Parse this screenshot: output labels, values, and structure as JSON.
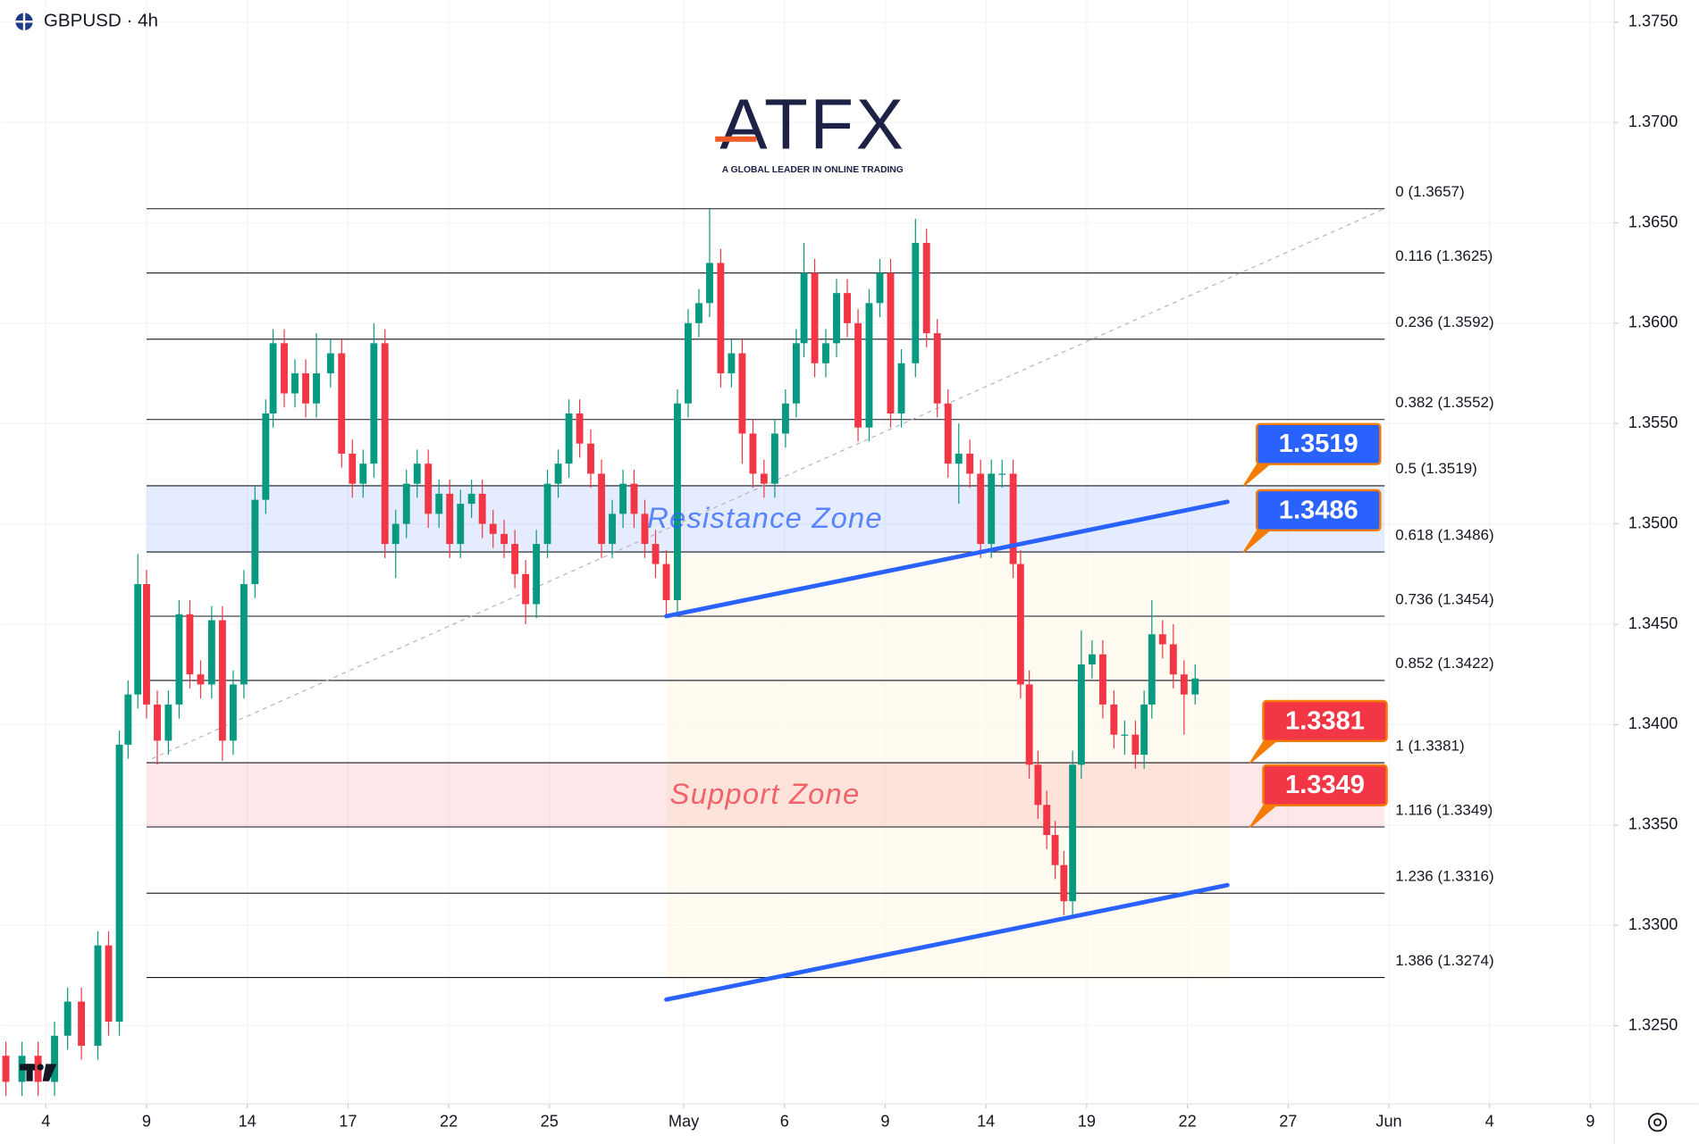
{
  "header": {
    "symbol_line": "GBPUSD · 4h"
  },
  "logo": {
    "name": "ATFX",
    "tagline": "A GLOBAL LEADER IN ONLINE TRADING"
  },
  "chart_data": {
    "type": "candlestick",
    "up_color": "#089981",
    "down_color": "#f23645",
    "grid": true,
    "xlim": [
      -1.355,
      46.71
    ],
    "xticks": [
      {
        "value": 0,
        "label": "4"
      },
      {
        "value": 3,
        "label": "9"
      },
      {
        "value": 6,
        "label": "14"
      },
      {
        "value": 9,
        "label": "17"
      },
      {
        "value": 12,
        "label": "22"
      },
      {
        "value": 15,
        "label": "25"
      },
      {
        "value": 19,
        "label": "May"
      },
      {
        "value": 22,
        "label": "6"
      },
      {
        "value": 25,
        "label": "9"
      },
      {
        "value": 28,
        "label": "14"
      },
      {
        "value": 31,
        "label": "19"
      },
      {
        "value": 34,
        "label": "22"
      },
      {
        "value": 37,
        "label": "27"
      },
      {
        "value": 40,
        "label": "Jun"
      },
      {
        "value": 43,
        "label": "4"
      },
      {
        "value": 46,
        "label": "9"
      }
    ],
    "ylim": [
      1.3211,
      1.3761
    ],
    "yticks": [
      {
        "value": 1.375,
        "label": "1.3750"
      },
      {
        "value": 1.37,
        "label": "1.3700"
      },
      {
        "value": 1.365,
        "label": "1.3650"
      },
      {
        "value": 1.36,
        "label": "1.3600"
      },
      {
        "value": 1.355,
        "label": "1.3550"
      },
      {
        "value": 1.35,
        "label": "1.3500"
      },
      {
        "value": 1.345,
        "label": "1.3450"
      },
      {
        "value": 1.34,
        "label": "1.3400"
      },
      {
        "value": 1.335,
        "label": "1.3350"
      },
      {
        "value": 1.33,
        "label": "1.3300"
      },
      {
        "value": 1.325,
        "label": "1.3250"
      }
    ],
    "x": [
      -1.19,
      -0.71,
      -0.23,
      0.26,
      0.65,
      1.06,
      1.55,
      1.87,
      2.19,
      2.45,
      2.74,
      3.0,
      3.32,
      3.65,
      3.97,
      4.29,
      4.61,
      4.94,
      5.26,
      5.58,
      5.9,
      6.23,
      6.55,
      6.77,
      7.1,
      7.42,
      7.74,
      8.06,
      8.48,
      8.81,
      9.13,
      9.45,
      9.77,
      10.1,
      10.42,
      10.74,
      11.06,
      11.39,
      11.71,
      12.03,
      12.35,
      12.68,
      13.0,
      13.32,
      13.65,
      13.97,
      14.29,
      14.61,
      14.94,
      15.26,
      15.58,
      15.9,
      16.23,
      16.55,
      16.87,
      17.19,
      17.52,
      17.84,
      18.16,
      18.48,
      18.81,
      19.13,
      19.45,
      19.77,
      20.1,
      20.42,
      20.74,
      21.06,
      21.39,
      21.71,
      22.03,
      22.35,
      22.58,
      22.9,
      23.23,
      23.55,
      23.87,
      24.19,
      24.52,
      24.84,
      25.16,
      25.48,
      25.9,
      26.23,
      26.55,
      26.87,
      27.19,
      27.52,
      27.84,
      28.16,
      28.48,
      28.81,
      29.03,
      29.29,
      29.55,
      29.81,
      30.06,
      30.32,
      30.58,
      30.84,
      31.16,
      31.48,
      31.81,
      32.13,
      32.45,
      32.71,
      32.94,
      33.26,
      33.58,
      33.9,
      34.23
    ],
    "open": [
      1.3235,
      1.3222,
      1.3235,
      1.3222,
      1.3245,
      1.3262,
      1.324,
      1.329,
      1.3252,
      1.339,
      1.3415,
      1.347,
      1.341,
      1.3392,
      1.341,
      1.3455,
      1.3425,
      1.342,
      1.3452,
      1.3392,
      1.342,
      1.347,
      1.3512,
      1.3555,
      1.359,
      1.3565,
      1.3575,
      1.356,
      1.3575,
      1.3585,
      1.3535,
      1.352,
      1.353,
      1.359,
      1.349,
      1.35,
      1.352,
      1.353,
      1.3505,
      1.3515,
      1.349,
      1.351,
      1.3515,
      1.35,
      1.3495,
      1.349,
      1.3475,
      1.346,
      1.349,
      1.352,
      1.353,
      1.3555,
      1.354,
      1.3525,
      1.349,
      1.3505,
      1.352,
      1.3505,
      1.349,
      1.348,
      1.3462,
      1.356,
      1.36,
      1.361,
      1.363,
      1.3575,
      1.3585,
      1.3545,
      1.3525,
      1.352,
      1.3545,
      1.356,
      1.359,
      1.3625,
      1.358,
      1.359,
      1.3615,
      1.36,
      1.3548,
      1.361,
      1.3625,
      1.3555,
      1.358,
      1.364,
      1.3595,
      1.356,
      1.353,
      1.3535,
      1.3525,
      1.349,
      1.3525,
      1.3525,
      1.348,
      1.342,
      1.338,
      1.336,
      1.3345,
      1.333,
      1.3312,
      1.338,
      1.343,
      1.3435,
      1.341,
      1.3395,
      1.3395,
      1.3385,
      1.341,
      1.3445,
      1.344,
      1.3425,
      1.3415
    ],
    "high": [
      1.3242,
      1.3242,
      1.3242,
      1.3252,
      1.3269,
      1.3269,
      1.3297,
      1.3297,
      1.3397,
      1.3422,
      1.3485,
      1.3477,
      1.3417,
      1.3417,
      1.3462,
      1.3462,
      1.3432,
      1.3459,
      1.3459,
      1.3427,
      1.3477,
      1.3519,
      1.3562,
      1.3597,
      1.3597,
      1.3582,
      1.3582,
      1.3595,
      1.3592,
      1.3592,
      1.3542,
      1.3537,
      1.36,
      1.3597,
      1.3507,
      1.3527,
      1.3537,
      1.3537,
      1.3522,
      1.3522,
      1.3517,
      1.3522,
      1.3522,
      1.3507,
      1.3502,
      1.3497,
      1.3482,
      1.3497,
      1.3527,
      1.3537,
      1.3562,
      1.3562,
      1.3547,
      1.3532,
      1.3512,
      1.3527,
      1.3527,
      1.3512,
      1.3497,
      1.3487,
      1.3567,
      1.3607,
      1.3617,
      1.3657,
      1.3637,
      1.3592,
      1.3592,
      1.3552,
      1.3532,
      1.3552,
      1.3567,
      1.3597,
      1.364,
      1.3632,
      1.3597,
      1.3622,
      1.3622,
      1.3607,
      1.3617,
      1.3632,
      1.3632,
      1.3587,
      1.3652,
      1.3647,
      1.3602,
      1.3567,
      1.355,
      1.3542,
      1.3532,
      1.3532,
      1.3532,
      1.3532,
      1.3487,
      1.3427,
      1.3387,
      1.3367,
      1.3352,
      1.3337,
      1.3387,
      1.3447,
      1.3442,
      1.3442,
      1.3417,
      1.3402,
      1.3402,
      1.3417,
      1.3462,
      1.3452,
      1.345,
      1.3432,
      1.343
    ],
    "low": [
      1.3215,
      1.3215,
      1.3215,
      1.3215,
      1.3238,
      1.3233,
      1.3233,
      1.3245,
      1.3245,
      1.3383,
      1.3408,
      1.3403,
      1.338,
      1.3385,
      1.3403,
      1.3418,
      1.3413,
      1.3413,
      1.3382,
      1.3385,
      1.3413,
      1.3463,
      1.3505,
      1.3548,
      1.3558,
      1.3558,
      1.3553,
      1.3553,
      1.3568,
      1.3528,
      1.3513,
      1.3513,
      1.3523,
      1.3483,
      1.3473,
      1.3493,
      1.3513,
      1.3498,
      1.3498,
      1.3483,
      1.3483,
      1.3503,
      1.3493,
      1.3488,
      1.3483,
      1.3468,
      1.345,
      1.3453,
      1.3483,
      1.3513,
      1.3523,
      1.3533,
      1.3518,
      1.3483,
      1.3483,
      1.3498,
      1.3498,
      1.3483,
      1.3473,
      1.3455,
      1.3455,
      1.3553,
      1.3593,
      1.3603,
      1.3568,
      1.3568,
      1.353,
      1.3518,
      1.3513,
      1.3513,
      1.3538,
      1.3553,
      1.3583,
      1.3573,
      1.3573,
      1.3583,
      1.3593,
      1.3541,
      1.3541,
      1.3603,
      1.3548,
      1.3548,
      1.3573,
      1.3588,
      1.3553,
      1.3523,
      1.351,
      1.3518,
      1.3483,
      1.3483,
      1.3518,
      1.3473,
      1.3413,
      1.3373,
      1.3353,
      1.3338,
      1.3323,
      1.3305,
      1.3305,
      1.3373,
      1.3423,
      1.3403,
      1.3388,
      1.3385,
      1.3378,
      1.3378,
      1.3403,
      1.3433,
      1.3418,
      1.3395,
      1.341
    ],
    "close": [
      1.3222,
      1.3235,
      1.3222,
      1.3245,
      1.3262,
      1.324,
      1.329,
      1.3252,
      1.339,
      1.3415,
      1.347,
      1.341,
      1.3392,
      1.341,
      1.3455,
      1.3425,
      1.342,
      1.3452,
      1.3392,
      1.342,
      1.347,
      1.3512,
      1.3555,
      1.359,
      1.3565,
      1.3575,
      1.356,
      1.3575,
      1.3585,
      1.3535,
      1.352,
      1.353,
      1.359,
      1.349,
      1.35,
      1.352,
      1.353,
      1.3505,
      1.3515,
      1.349,
      1.351,
      1.3515,
      1.35,
      1.3495,
      1.349,
      1.3475,
      1.346,
      1.349,
      1.352,
      1.353,
      1.3555,
      1.354,
      1.3525,
      1.349,
      1.3505,
      1.352,
      1.3505,
      1.349,
      1.348,
      1.3462,
      1.356,
      1.36,
      1.361,
      1.363,
      1.3575,
      1.3585,
      1.3545,
      1.3525,
      1.352,
      1.3545,
      1.356,
      1.359,
      1.3625,
      1.358,
      1.359,
      1.3615,
      1.36,
      1.3548,
      1.361,
      1.3625,
      1.3555,
      1.358,
      1.364,
      1.3595,
      1.356,
      1.353,
      1.3535,
      1.3525,
      1.349,
      1.3525,
      1.3525,
      1.348,
      1.342,
      1.338,
      1.336,
      1.3345,
      1.333,
      1.3312,
      1.338,
      1.343,
      1.3435,
      1.341,
      1.3395,
      1.3395,
      1.3385,
      1.341,
      1.3445,
      1.344,
      1.3425,
      1.3415,
      1.3423
    ],
    "fib": {
      "color": "#131722",
      "levels": [
        {
          "value": 1.3657,
          "label": "0 (1.3657)"
        },
        {
          "value": 1.3625,
          "label": "0.116 (1.3625)"
        },
        {
          "value": 1.3592,
          "label": "0.236 (1.3592)"
        },
        {
          "value": 1.3552,
          "label": "0.382 (1.3552)"
        },
        {
          "value": 1.3519,
          "label": "0.5 (1.3519)"
        },
        {
          "value": 1.3486,
          "label": "0.618 (1.3486)"
        },
        {
          "value": 1.3454,
          "label": "0.736 (1.3454)"
        },
        {
          "value": 1.3422,
          "label": "0.852 (1.3422)"
        },
        {
          "value": 1.3381,
          "label": "1 (1.3381)"
        },
        {
          "value": 1.3349,
          "label": "1.116 (1.3349)"
        },
        {
          "value": 1.3316,
          "label": "1.236 (1.3316)"
        },
        {
          "value": 1.3274,
          "label": "1.386 (1.3274)"
        }
      ],
      "anchor": {
        "x": [
          3.16,
          39.87
        ],
        "y": [
          1.3383,
          1.3657
        ]
      }
    },
    "zones": [
      {
        "name": "Resistance Zone",
        "range": [
          1.3486,
          1.3519
        ],
        "color": "#2962ff"
      },
      {
        "name": "Support Zone",
        "range": [
          1.3349,
          1.3381
        ],
        "color": "#f23645"
      }
    ],
    "callouts": [
      {
        "value": 1.3519,
        "color": "#2962ff"
      },
      {
        "value": 1.3486,
        "color": "#2962ff"
      },
      {
        "value": 1.3381,
        "color": "#f23645"
      },
      {
        "value": 1.3349,
        "color": "#f23645"
      }
    ],
    "trend_lines": [
      {
        "x": [
          18.48,
          35.19
        ],
        "y": [
          1.3454,
          1.3511
        ],
        "color": "#2962ff"
      },
      {
        "x": [
          18.48,
          35.19
        ],
        "y": [
          1.3263,
          1.332
        ],
        "color": "#2962ff"
      }
    ]
  }
}
